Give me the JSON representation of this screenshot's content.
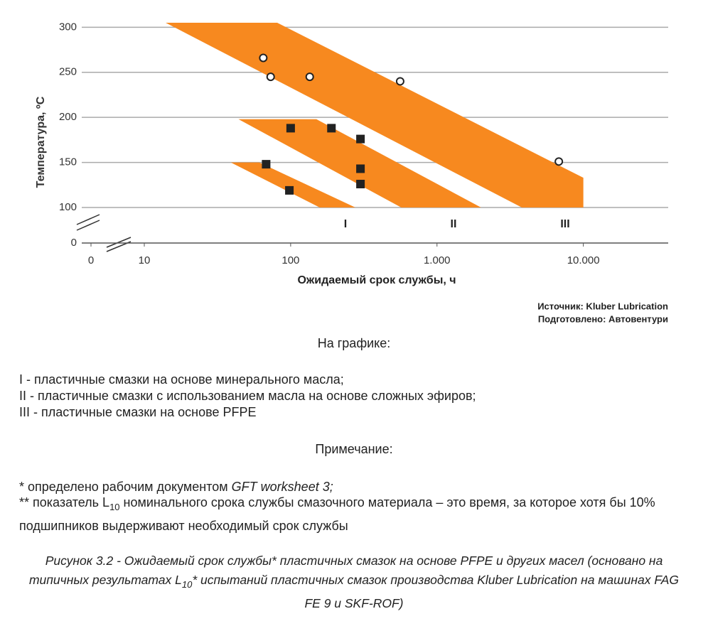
{
  "chart_data": {
    "type": "scatter",
    "y_label": "Температура, ºС",
    "x_label": "Ожидаемый срок службы, ч",
    "x_log": true,
    "xlim": [
      10,
      38000
    ],
    "xticks": [
      0,
      10,
      100,
      {
        "value": 1000,
        "label": "1.000"
      },
      {
        "value": 10000,
        "label": "10.000"
      }
    ],
    "ylim": [
      0,
      305
    ],
    "yticks": [
      0,
      100,
      150,
      200,
      250,
      300
    ],
    "grid": true,
    "band_color": "#f7891f",
    "bands": [
      {
        "name": "I",
        "x": [
          39,
          61,
          277,
          158
        ],
        "y": [
          150,
          150,
          100,
          100
        ]
      },
      {
        "name": "II",
        "x": [
          44,
          150,
          2000,
          570
        ],
        "y": [
          198,
          198,
          100,
          100
        ]
      },
      {
        "name": "III",
        "x": [
          14,
          81,
          10000,
          10000,
          3800
        ],
        "y": [
          305,
          305,
          133,
          100,
          100
        ]
      }
    ],
    "series": [
      {
        "marker": "circle",
        "color": "#ffffff",
        "x": [
          65,
          73,
          135,
          560,
          6800
        ],
        "y": [
          266,
          245,
          245,
          240,
          151
        ]
      },
      {
        "marker": "square",
        "color": "#222222",
        "x": [
          68,
          98,
          100,
          190,
          300,
          300,
          300
        ],
        "y": [
          148,
          119,
          188,
          188,
          176,
          143,
          126
        ]
      }
    ],
    "source": "Источник: Kluber Lubrication",
    "prepared": "Подготовлено: Автовентури"
  },
  "text": {
    "legend_title": "На графике:",
    "legend_items": [
      "I - пластичные смазки на основе минерального масла;",
      "II - пластичные смазки с использованием масла на основе сложных эфиров;",
      "III - пластичные смазки на основе  PFPE"
    ],
    "note_title": "Примечание:",
    "note1": {
      "text": "* определено рабочим документом ",
      "italic": "GFT worksheet 3;"
    },
    "note2": {
      "before": "** показатель L",
      "sub": "10",
      "after": " номинального срока службы смазочного материала – это время, за которое хотя бы 10% подшипников выдерживают необходимый срок службы"
    },
    "caption": {
      "before": "Рисунок 3.2 - Ожидаемый срок службы* пластичных смазок на основе PFPE и других масел (основано на типичных результатах L",
      "sub": "10",
      "after": "* испытаний пластичных смазок производства Kluber Lubrication на машинах FAG FE 9 и SKF-ROF)"
    }
  }
}
